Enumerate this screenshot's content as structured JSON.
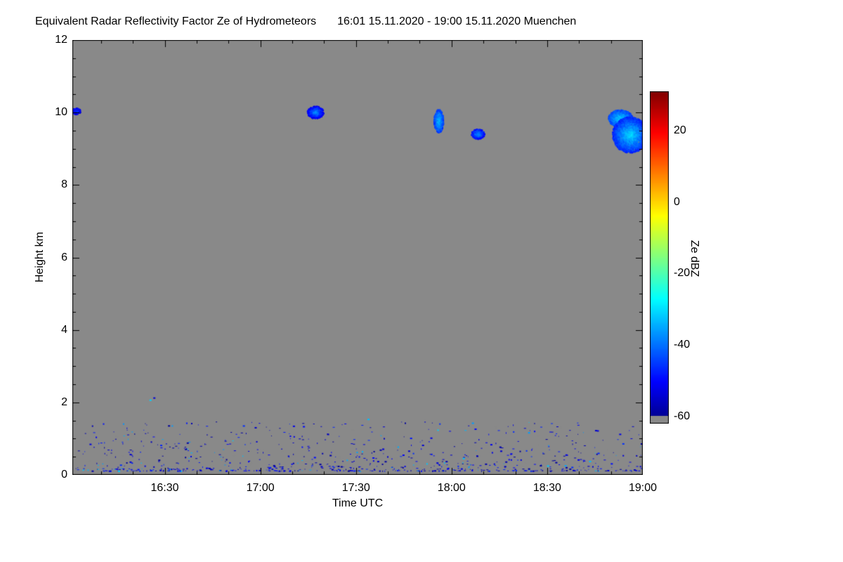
{
  "title": {
    "main": "Equivalent Radar Reflectivity Factor Ze of Hydrometeors",
    "range": "16:01 15.11.2020 - 19:00 15.11.2020 Muenchen"
  },
  "chart_data": {
    "type": "heatmap",
    "title": "Equivalent Radar Reflectivity Factor Ze of Hydrometeors",
    "time_range": "16:01 15.11.2020 - 19:00 15.11.2020",
    "station": "Muenchen",
    "xlabel": "Time UTC",
    "ylabel": "Height km",
    "x_start_hour": 16.0167,
    "x_end_hour": 19.0,
    "x_ticks": [
      {
        "hour": 16.5,
        "label": "16:30"
      },
      {
        "hour": 17.0,
        "label": "17:00"
      },
      {
        "hour": 17.5,
        "label": "17:30"
      },
      {
        "hour": 18.0,
        "label": "18:00"
      },
      {
        "hour": 18.5,
        "label": "18:30"
      },
      {
        "hour": 19.0,
        "label": "19:00"
      }
    ],
    "x_minor_step_hours": 0.166667,
    "ylim": [
      0,
      12
    ],
    "y_ticks": [
      0,
      2,
      4,
      6,
      8,
      10,
      12
    ],
    "y_minor_step": 0.5,
    "background_color": "#898989",
    "axis_color": "#000000",
    "colorbar": {
      "label": "Ze dBZ",
      "ticks": [
        20,
        0,
        -20,
        -40,
        -60
      ],
      "vmin": -62,
      "vmax": 31,
      "gray_below": -60,
      "gray_color": "#898989",
      "colormap": "jet"
    },
    "cloud_features": [
      {
        "t": 16.035,
        "h": 10.05,
        "dt_min": 1.3,
        "dh_km": 0.09,
        "dbz_core": -44,
        "dbz_edge": -53
      },
      {
        "t": 17.285,
        "h": 10.02,
        "dt_min": 2.6,
        "dh_km": 0.17,
        "dbz_core": -36,
        "dbz_edge": -52
      },
      {
        "t": 17.93,
        "h": 9.78,
        "dt_min": 1.5,
        "dh_km": 0.32,
        "dbz_core": -32,
        "dbz_edge": -45
      },
      {
        "t": 18.135,
        "h": 9.42,
        "dt_min": 2.1,
        "dh_km": 0.14,
        "dbz_core": -36,
        "dbz_edge": -50
      },
      {
        "t": 18.88,
        "h": 9.85,
        "dt_min": 3.8,
        "dh_km": 0.24,
        "dbz_core": -31,
        "dbz_edge": -44
      },
      {
        "t": 18.93,
        "h": 9.4,
        "dt_min": 5.5,
        "dh_km": 0.5,
        "dbz_core": -30,
        "dbz_edge": -47
      }
    ],
    "ground_clutter": {
      "seed": 1337,
      "count": 850,
      "t_min": 16.03,
      "t_max": 18.99,
      "h_base": 0.12,
      "h_range": 1.35,
      "h_pow": 2.6,
      "dbz_min": -61,
      "dbz_max": -46,
      "cyan_fraction": 0.09,
      "cyan_dbz": -34,
      "outliers": [
        {
          "t": 16.42,
          "h": 2.08,
          "dbz": -31
        },
        {
          "t": 16.44,
          "h": 2.14,
          "dbz": -54
        },
        {
          "t": 16.97,
          "h": 1.32,
          "dbz": -55
        },
        {
          "t": 17.17,
          "h": 1.36,
          "dbz": -52
        },
        {
          "t": 17.56,
          "h": 1.55,
          "dbz": -33
        },
        {
          "t": 18.12,
          "h": 1.28,
          "dbz": -50
        },
        {
          "t": 18.4,
          "h": 1.18,
          "dbz": -36
        },
        {
          "t": 18.75,
          "h": 1.24,
          "dbz": -55
        }
      ]
    }
  }
}
